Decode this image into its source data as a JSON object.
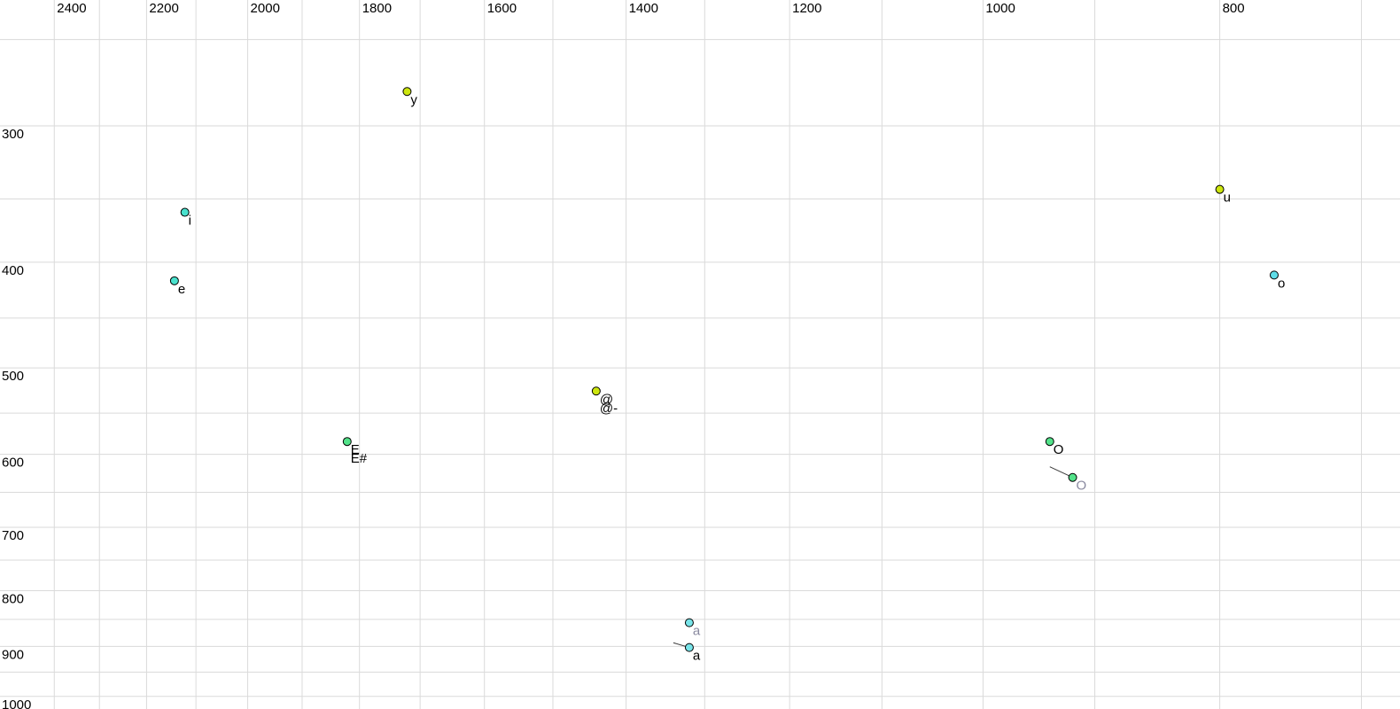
{
  "chart_data": {
    "type": "scatter",
    "description": "Vowel formant chart: F2 (Hz) decreasing left-to-right on top axis, F1 (Hz) increasing top-to-bottom on left axis, both logarithmic",
    "x_axis": {
      "unit": "Hz",
      "scale": "log",
      "reversed": true,
      "left_hz": 2526,
      "right_hz": 675,
      "grid_from": 2400,
      "grid_to": 700,
      "grid_step": 100,
      "tick_values": [
        2400,
        2200,
        2000,
        1800,
        1600,
        1400,
        1200,
        1000,
        800
      ],
      "tick_labels": [
        "2400",
        "2200",
        "2000",
        "1800",
        "1600",
        "1400",
        "1200",
        "1000",
        "800"
      ]
    },
    "y_axis": {
      "unit": "Hz",
      "scale": "log",
      "top_hz": 230,
      "bottom_hz": 1027,
      "grid_from": 250,
      "grid_to": 1000,
      "grid_step": 50,
      "tick_values": [
        300,
        400,
        500,
        600,
        700,
        800,
        900,
        1000
      ],
      "tick_labels": [
        "300",
        "400",
        "500",
        "600",
        "700",
        "800",
        "900",
        "1000"
      ]
    },
    "points": [
      {
        "label": "y",
        "f2": 1721,
        "f1": 279,
        "dot_color": "#cde60e",
        "label_color": "#000000"
      },
      {
        "label": "i",
        "f2": 2122,
        "f1": 360,
        "dot_color": "#49e1cd",
        "label_color": "#000000"
      },
      {
        "label": "e",
        "f2": 2143,
        "f1": 416,
        "dot_color": "#49e1cd",
        "label_color": "#000000"
      },
      {
        "label": "u",
        "f2": 800,
        "f1": 343,
        "dot_color": "#cde60e",
        "label_color": "#000000"
      },
      {
        "label": "o",
        "f2": 760,
        "f1": 411,
        "dot_color": "#5fdde8",
        "label_color": "#000000"
      },
      {
        "label": "@",
        "label2": "@-",
        "f2": 1440,
        "f1": 525,
        "dot_color": "#cde60e",
        "label_color": "#000000",
        "label2_color": "#000000"
      },
      {
        "label": "E",
        "label2": "E#",
        "f2": 1821,
        "f1": 584,
        "dot_color": "#52e289",
        "label_color": "#000000",
        "label2_color": "#000000"
      },
      {
        "label": "O",
        "f2": 939,
        "f1": 584,
        "dot_color": "#52e289",
        "label_color": "#000000"
      },
      {
        "label": "O",
        "f2": 919,
        "f1": 630,
        "dot_color": "#52e289",
        "label_color": "#8a8aa0",
        "tail_from": {
          "f2": 939,
          "f1": 616
        }
      },
      {
        "label": "a",
        "f2": 1319,
        "f1": 856,
        "dot_color": "#78e4e9",
        "label_color": "#8a8aa0"
      },
      {
        "label": "a",
        "f2": 1319,
        "f1": 902,
        "dot_color": "#78e4e9",
        "label_color": "#000000",
        "tail_from": {
          "f2": 1339,
          "f1": 893
        }
      }
    ],
    "colors": {
      "background": "#ffffff",
      "gridline": "#dadada",
      "tick_text": "#000000",
      "tail_line": "#3a3a3a",
      "dot_outline": "#000000"
    }
  }
}
